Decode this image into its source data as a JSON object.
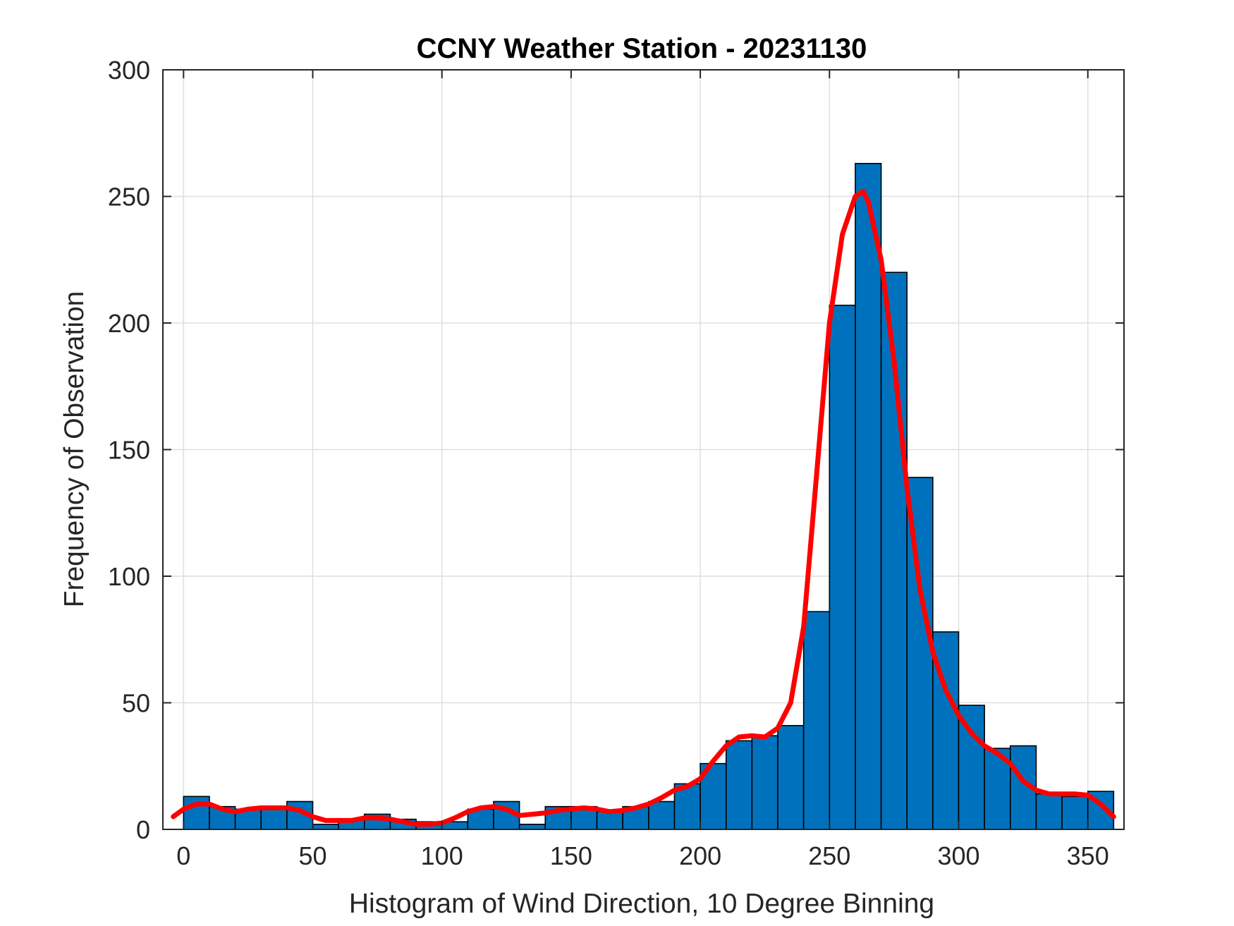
{
  "colors": {
    "bar_fill": "#0072BD",
    "bar_edge": "#000000",
    "fit_line": "#FF0000",
    "grid": "#DFDFDF",
    "axes": "#262626"
  },
  "chart_data": {
    "type": "bar",
    "title": "CCNY Weather Station - 20231130",
    "xlabel": "Histogram of Wind Direction, 10 Degree Binning",
    "ylabel": "Frequency of Observation",
    "xlim": [
      -8,
      364
    ],
    "ylim": [
      0,
      300
    ],
    "xticks": [
      0,
      50,
      100,
      150,
      200,
      250,
      300,
      350
    ],
    "yticks": [
      0,
      50,
      100,
      150,
      200,
      250,
      300
    ],
    "grid": true,
    "bin_width": 10,
    "bin_edges": [
      0,
      10,
      20,
      30,
      40,
      50,
      60,
      70,
      80,
      90,
      100,
      110,
      120,
      130,
      140,
      150,
      160,
      170,
      180,
      190,
      200,
      210,
      220,
      230,
      240,
      250,
      260,
      270,
      280,
      290,
      300,
      310,
      320,
      330,
      340,
      350,
      360
    ],
    "values": [
      13,
      9,
      8,
      8,
      11,
      2,
      4,
      6,
      4,
      3,
      3,
      8,
      11,
      2,
      9,
      9,
      7,
      9,
      11,
      18,
      26,
      35,
      37,
      41,
      86,
      207,
      263,
      220,
      139,
      78,
      49,
      32,
      33,
      14,
      13,
      15
    ],
    "series": [
      {
        "type": "line",
        "x": [
          -4,
          0,
          5,
          10,
          15,
          20,
          25,
          30,
          35,
          40,
          45,
          50,
          55,
          60,
          65,
          70,
          75,
          80,
          85,
          90,
          95,
          100,
          105,
          110,
          115,
          120,
          125,
          130,
          135,
          140,
          145,
          150,
          155,
          160,
          165,
          170,
          175,
          180,
          185,
          190,
          195,
          200,
          205,
          210,
          215,
          220,
          225,
          230,
          235,
          240,
          245,
          250,
          255,
          260,
          263,
          265,
          270,
          275,
          280,
          285,
          290,
          295,
          300,
          305,
          310,
          315,
          320,
          325,
          330,
          335,
          340,
          345,
          350,
          355,
          360
        ],
        "values": [
          5,
          8,
          10,
          10,
          8,
          7,
          8,
          8.5,
          8.5,
          8.5,
          7.5,
          5,
          3.5,
          3.5,
          3.5,
          4.5,
          4.5,
          4,
          3,
          2,
          2,
          2.5,
          4.5,
          7,
          8.5,
          9,
          8,
          5.5,
          6,
          6.5,
          7.5,
          8,
          8.5,
          8,
          7,
          7.5,
          8.5,
          10,
          12.5,
          15.5,
          17,
          20,
          27,
          33,
          36.5,
          37,
          36.5,
          40,
          50,
          80,
          140,
          200,
          235,
          250,
          252,
          248,
          225,
          185,
          135,
          95,
          70,
          55,
          45,
          38,
          33,
          30,
          26,
          19,
          15.5,
          14,
          14,
          14,
          13.5,
          10,
          5
        ]
      }
    ]
  }
}
